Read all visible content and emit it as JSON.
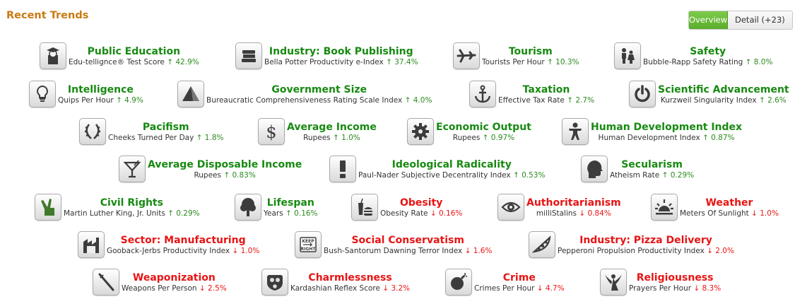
{
  "header": {
    "title": "Recent Trends"
  },
  "view_toggle": {
    "overview": "Overview",
    "detail": "Detail (+23)"
  },
  "trends": [
    {
      "name": "Public Education",
      "metric": "Edu-tellignce® Test Score",
      "change": "↑ 42.9%",
      "dir": "up",
      "icon": "graduate-icon"
    },
    {
      "name": "Industry: Book Publishing",
      "metric": "Bella Potter Productivity e-Index",
      "change": "↑ 37.4%",
      "dir": "up",
      "icon": "books-icon"
    },
    {
      "name": "Tourism",
      "metric": "Tourists Per Hour",
      "change": "↑ 10.3%",
      "dir": "up",
      "icon": "airplane-icon"
    },
    {
      "name": "Safety",
      "metric": "Bubble-Rapp Safety Rating",
      "change": "↑ 8.0%",
      "dir": "up",
      "icon": "family-icon"
    },
    {
      "name": "Intelligence",
      "metric": "Quips Per Hour",
      "change": "↑ 4.9%",
      "dir": "up",
      "icon": "lightbulb-icon"
    },
    {
      "name": "Government Size",
      "metric": "Bureaucratic Comprehensiveness Rating Scale Index",
      "change": "↑ 4.0%",
      "dir": "up",
      "icon": "pyramid-icon"
    },
    {
      "name": "Taxation",
      "metric": "Effective Tax Rate",
      "change": "↑ 2.7%",
      "dir": "up",
      "icon": "anchor-icon"
    },
    {
      "name": "Scientific Advancement",
      "metric": "Kurzweil Singularity Index",
      "change": "↑ 2.6%",
      "dir": "up",
      "icon": "power-icon"
    },
    {
      "name": "Pacifism",
      "metric": "Cheeks Turned Per Day",
      "change": "↑ 1.8%",
      "dir": "up",
      "icon": "laurel-icon"
    },
    {
      "name": "Average Income",
      "metric": "Rupees",
      "change": "↑ 1.0%",
      "dir": "up",
      "icon": "dollar-icon"
    },
    {
      "name": "Economic Output",
      "metric": "Rupees",
      "change": "↑ 0.97%",
      "dir": "up",
      "icon": "gear-icon"
    },
    {
      "name": "Human Development Index",
      "metric": "Human Development Index",
      "change": "↑ 0.87%",
      "dir": "up",
      "icon": "person-icon"
    },
    {
      "name": "Average Disposable Income",
      "metric": "Rupees",
      "change": "↑ 0.83%",
      "dir": "up",
      "icon": "cocktail-icon"
    },
    {
      "name": "Ideological Radicality",
      "metric": "Paul-Nader Subjective Decentrality Index",
      "change": "↑ 0.53%",
      "dir": "up",
      "icon": "exclamation-icon"
    },
    {
      "name": "Secularism",
      "metric": "Atheism Rate",
      "change": "↑ 0.29%",
      "dir": "up",
      "icon": "head-icon"
    },
    {
      "name": "Civil Rights",
      "metric": "Martin Luther King, Jr. Units",
      "change": "↑ 0.29%",
      "dir": "up",
      "icon": "peace-hand-icon"
    },
    {
      "name": "Lifespan",
      "metric": "Years",
      "change": "↑ 0.16%",
      "dir": "up",
      "icon": "tree-icon"
    },
    {
      "name": "Obesity",
      "metric": "Obesity Rate",
      "change": "↓ 0.16%",
      "dir": "down",
      "icon": "fastfood-icon"
    },
    {
      "name": "Authoritarianism",
      "metric": "milliStalins",
      "change": "↓ 0.84%",
      "dir": "down",
      "icon": "eye-icon"
    },
    {
      "name": "Weather",
      "metric": "Meters Of Sunlight",
      "change": "↓ 1.0%",
      "dir": "down",
      "icon": "sunrise-icon"
    },
    {
      "name": "Sector: Manufacturing",
      "metric": "Gooback-Jerbs Productivity Index",
      "change": "↓ 1.0%",
      "dir": "down",
      "icon": "factory-icon"
    },
    {
      "name": "Social Conservatism",
      "metric": "Bush-Santorum Dawning Terror Index",
      "change": "↓ 1.6%",
      "dir": "down",
      "icon": "keep-right-sign-icon",
      "icon_text": [
        "KEEP",
        "RIGHT"
      ]
    },
    {
      "name": "Industry: Pizza Delivery",
      "metric": "Pepperoni Propulsion Productivity Index",
      "change": "↓ 2.0%",
      "dir": "down",
      "icon": "pizza-icon"
    },
    {
      "name": "Weaponization",
      "metric": "Weapons Per Person",
      "change": "↓ 2.5%",
      "dir": "down",
      "icon": "sword-icon"
    },
    {
      "name": "Charmlessness",
      "metric": "Kardashian Reflex Score",
      "change": "↓ 3.2%",
      "dir": "down",
      "icon": "gasmask-icon"
    },
    {
      "name": "Crime",
      "metric": "Crimes Per Hour",
      "change": "↓ 4.7%",
      "dir": "down",
      "icon": "bomb-icon"
    },
    {
      "name": "Religiousness",
      "metric": "Prayers Per Hour",
      "change": "↓ 8.3%",
      "dir": "down",
      "icon": "angel-icon"
    }
  ]
}
